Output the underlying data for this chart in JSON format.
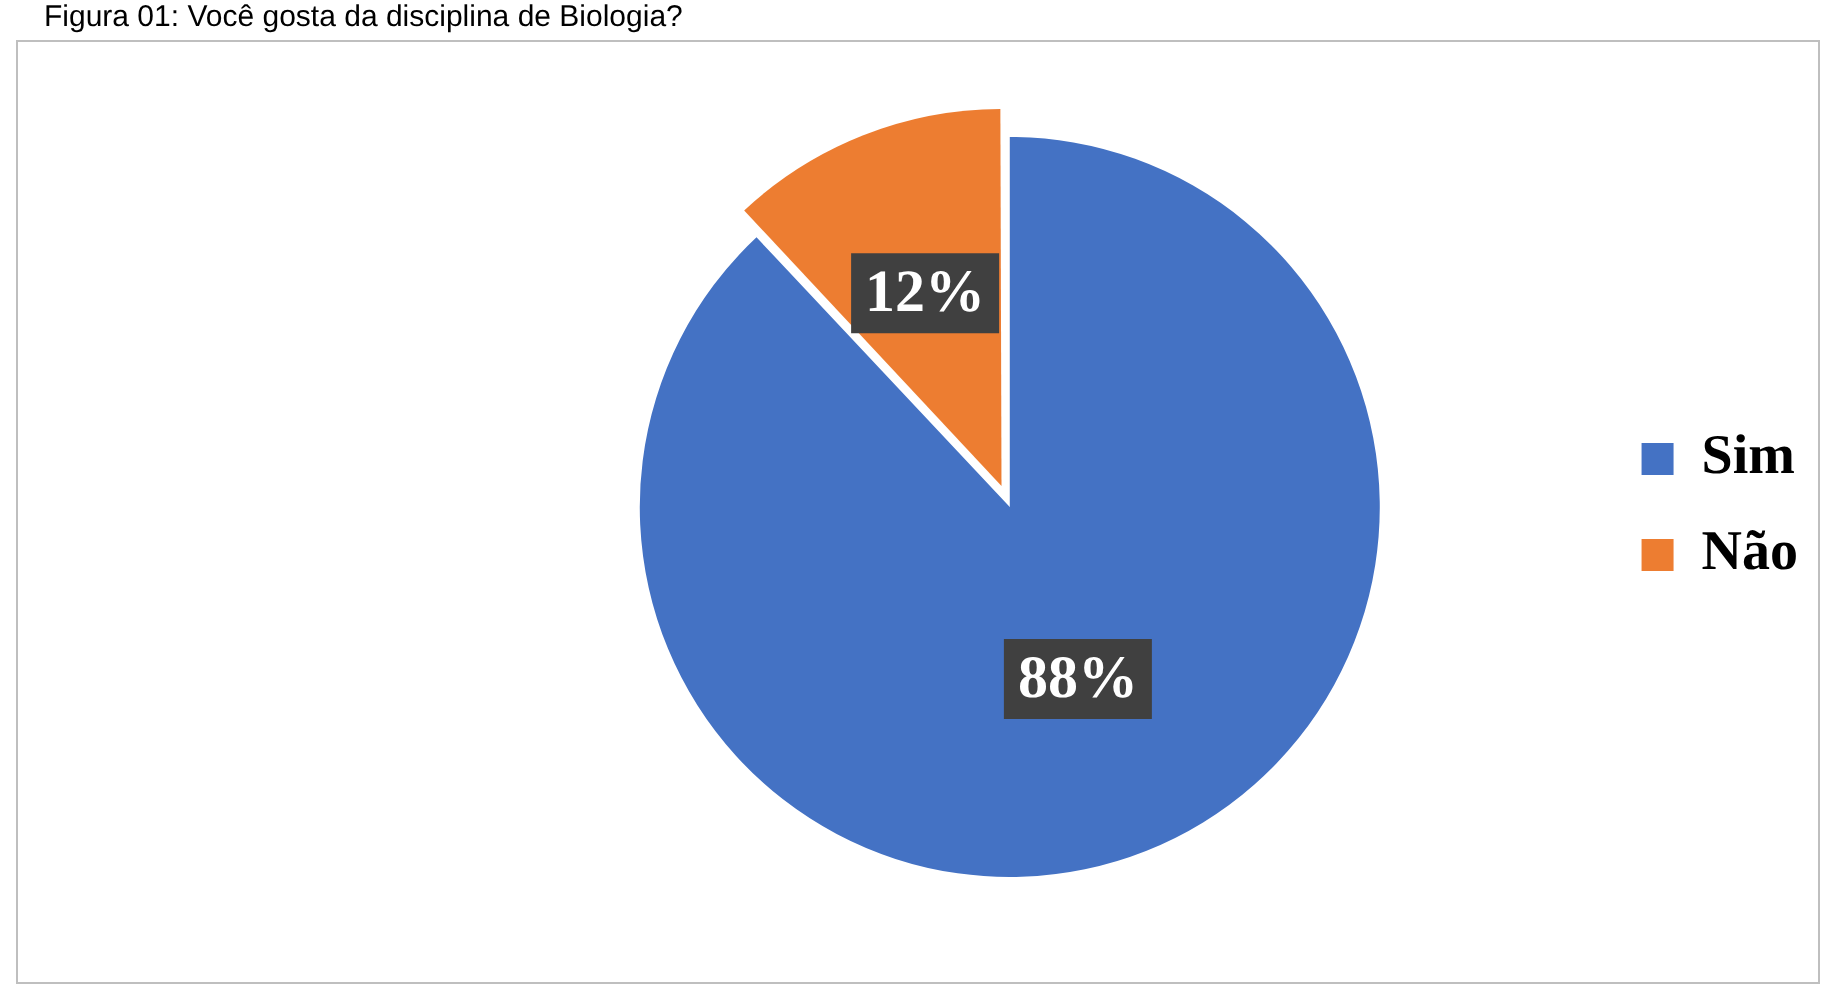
{
  "chart_data": {
    "type": "pie",
    "title": "Figura 01: Você gosta da disciplina de Biologia?",
    "categories": [
      "Sim",
      "Não"
    ],
    "values": [
      88,
      12
    ],
    "colors": [
      "#4472c4",
      "#ed7d31"
    ],
    "value_labels": [
      "88%",
      "12%"
    ],
    "legend": "right"
  }
}
